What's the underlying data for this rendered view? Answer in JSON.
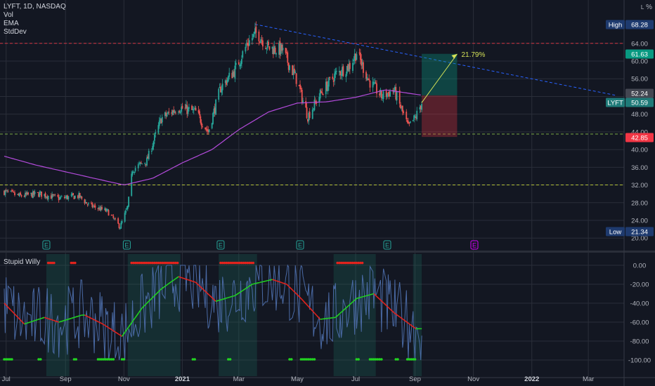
{
  "header": {
    "symbol_line": "LYFT, 1D, NASDAQ",
    "indicators": [
      "Vol",
      "EMA",
      "StdDev"
    ],
    "scale_mode": "%",
    "scale_mode_sub": "L"
  },
  "lower_pane": {
    "title": "Stupid Willy"
  },
  "colors": {
    "background": "#131722",
    "grid": "#2a2e39",
    "axis_text": "#b2b5be",
    "up": "#26a69a",
    "down": "#ef5350",
    "ema": "#b44bdc",
    "trendline": "#2962ff",
    "high_marker": "#1e3a6e",
    "low_marker": "#1e3a6e",
    "last_price": "#1f7a78",
    "target": "#089981",
    "stop": "#f23645",
    "arrow": "#d4e157",
    "osc": "#4a6aa5",
    "osc_up": "#22d321",
    "osc_down": "#e5231d"
  },
  "chart_data": [
    {
      "type": "candlestick",
      "title": "LYFT, 1D, NASDAQ",
      "x_tick_labels": [
        "Jul",
        "Sep",
        "Nov",
        "2021",
        "Mar",
        "May",
        "Jul",
        "Sep",
        "Nov",
        "2022",
        "Mar"
      ],
      "y_tick_labels": [
        "20.00",
        "24.00",
        "28.00",
        "32.00",
        "36.00",
        "40.00",
        "44.00",
        "48.00",
        "52.00",
        "56.00",
        "60.00",
        "64.00"
      ],
      "ylim": [
        20,
        70
      ],
      "price_labels": {
        "high": {
          "label": "High",
          "value": "68.28"
        },
        "low": {
          "label": "Low",
          "value": "21.34"
        },
        "target": "61.63",
        "entry": "52.24",
        "last": {
          "label": "LYFT",
          "value": "50.59"
        },
        "stop": "42.85"
      },
      "arrow_label": "21.79%",
      "earnings_label": "E",
      "close_waypoints": [
        [
          "2020-06-29",
          30.5
        ],
        [
          "2020-07-15",
          29.5
        ],
        [
          "2020-08-05",
          30.0
        ],
        [
          "2020-08-25",
          29.0
        ],
        [
          "2020-09-15",
          29.5
        ],
        [
          "2020-09-25",
          27.5
        ],
        [
          "2020-10-15",
          26.0
        ],
        [
          "2020-10-28",
          22.5
        ],
        [
          "2020-11-05",
          27.0
        ],
        [
          "2020-11-10",
          35.5
        ],
        [
          "2020-11-25",
          37.5
        ],
        [
          "2020-12-10",
          47.0
        ],
        [
          "2020-12-28",
          49.5
        ],
        [
          "2021-01-15",
          48.5
        ],
        [
          "2021-01-28",
          44.0
        ],
        [
          "2021-02-10",
          54.0
        ],
        [
          "2021-02-25",
          58.0
        ],
        [
          "2021-03-10",
          64.0
        ],
        [
          "2021-03-20",
          66.5
        ],
        [
          "2021-04-01",
          63.0
        ],
        [
          "2021-04-15",
          62.5
        ],
        [
          "2021-04-30",
          56.0
        ],
        [
          "2021-05-12",
          47.5
        ],
        [
          "2021-05-25",
          52.5
        ],
        [
          "2021-06-10",
          57.0
        ],
        [
          "2021-06-25",
          59.0
        ],
        [
          "2021-07-02",
          62.0
        ],
        [
          "2021-07-15",
          55.5
        ],
        [
          "2021-07-28",
          52.0
        ],
        [
          "2021-08-10",
          53.5
        ],
        [
          "2021-08-25",
          45.0
        ],
        [
          "2021-09-02",
          47.5
        ],
        [
          "2021-09-08",
          50.6
        ]
      ],
      "ema_waypoints": [
        [
          "2020-06-29",
          38.5
        ],
        [
          "2020-08-01",
          36.5
        ],
        [
          "2020-10-01",
          33.5
        ],
        [
          "2020-11-01",
          32.0
        ],
        [
          "2020-12-01",
          33.5
        ],
        [
          "2021-01-01",
          37.0
        ],
        [
          "2021-02-01",
          40.0
        ],
        [
          "2021-03-01",
          44.5
        ],
        [
          "2021-04-01",
          48.5
        ],
        [
          "2021-05-01",
          50.5
        ],
        [
          "2021-06-01",
          50.8
        ],
        [
          "2021-07-01",
          51.8
        ],
        [
          "2021-08-01",
          53.5
        ],
        [
          "2021-09-08",
          52.3
        ]
      ],
      "trendline": {
        "from": [
          "2021-03-18",
          68.3
        ],
        "to": [
          "2022-03-31",
          52.2
        ]
      },
      "dashed_levels": [
        {
          "value": 64.0,
          "color": "#f23645"
        },
        {
          "value": 43.5,
          "color": "#8bc34a"
        },
        {
          "value": 32.0,
          "color": "#cddc39"
        }
      ],
      "position": {
        "start": "2021-09-08",
        "end": "2021-10-15",
        "entry": 52.24,
        "target": 61.63,
        "stop": 42.85
      },
      "arrow": {
        "from": [
          "2021-09-08",
          50.6
        ],
        "to": [
          "2021-10-15",
          61.6
        ]
      },
      "earnings_dates": [
        "2020-08-12",
        "2020-11-04",
        "2021-02-10",
        "2021-05-04",
        "2021-08-03",
        "2021-11-02"
      ]
    },
    {
      "type": "line",
      "title": "Stupid Willy",
      "y_tick_labels": [
        "0.00",
        "-20.00",
        "-40.00",
        "-60.00",
        "-80.00",
        "-100.00"
      ],
      "ylim": [
        -105,
        8
      ],
      "signal_waypoints": [
        [
          "2020-06-29",
          -40
        ],
        [
          "2020-07-20",
          -62
        ],
        [
          "2020-08-10",
          -55
        ],
        [
          "2020-08-25",
          -60
        ],
        [
          "2020-09-20",
          -52
        ],
        [
          "2020-10-10",
          -62
        ],
        [
          "2020-10-30",
          -75
        ],
        [
          "2020-11-20",
          -45
        ],
        [
          "2020-12-10",
          -25
        ],
        [
          "2020-12-28",
          -12
        ],
        [
          "2021-01-15",
          -18
        ],
        [
          "2021-02-05",
          -38
        ],
        [
          "2021-02-25",
          -32
        ],
        [
          "2021-03-15",
          -20
        ],
        [
          "2021-04-05",
          -15
        ],
        [
          "2021-04-20",
          -20
        ],
        [
          "2021-05-05",
          -35
        ],
        [
          "2021-05-25",
          -57
        ],
        [
          "2021-06-10",
          -55
        ],
        [
          "2021-07-02",
          -35
        ],
        [
          "2021-07-20",
          -30
        ],
        [
          "2021-08-10",
          -50
        ],
        [
          "2021-09-02",
          -67
        ],
        [
          "2021-09-08",
          -67
        ]
      ],
      "highlight_zones": [
        [
          "2020-08-12",
          "2020-09-05"
        ],
        [
          "2020-11-05",
          "2020-12-30"
        ],
        [
          "2021-02-08",
          "2021-03-20"
        ],
        [
          "2021-06-08",
          "2021-07-22"
        ],
        [
          "2021-08-30",
          "2021-09-08"
        ]
      ],
      "top_marker_zones": [
        [
          "2020-08-14",
          "2020-08-20"
        ],
        [
          "2020-09-07",
          "2020-09-12"
        ],
        [
          "2020-11-09",
          "2020-12-28"
        ],
        [
          "2021-02-10",
          "2021-03-16"
        ],
        [
          "2021-06-12",
          "2021-07-08"
        ]
      ],
      "bottom_marker_zones": [
        [
          "2020-06-29",
          "2020-07-08"
        ],
        [
          "2020-08-04",
          "2020-08-06"
        ],
        [
          "2020-09-10",
          "2020-09-12"
        ],
        [
          "2020-10-05",
          "2020-10-22"
        ],
        [
          "2020-10-30",
          "2020-11-01"
        ],
        [
          "2021-01-12",
          "2021-01-14"
        ],
        [
          "2021-02-18",
          "2021-02-20"
        ],
        [
          "2021-04-23",
          "2021-04-25"
        ],
        [
          "2021-05-05",
          "2021-05-20"
        ],
        [
          "2021-07-02",
          "2021-07-04"
        ],
        [
          "2021-07-16",
          "2021-07-28"
        ],
        [
          "2021-08-12",
          "2021-08-14"
        ],
        [
          "2021-08-24",
          "2021-09-01"
        ]
      ]
    }
  ]
}
